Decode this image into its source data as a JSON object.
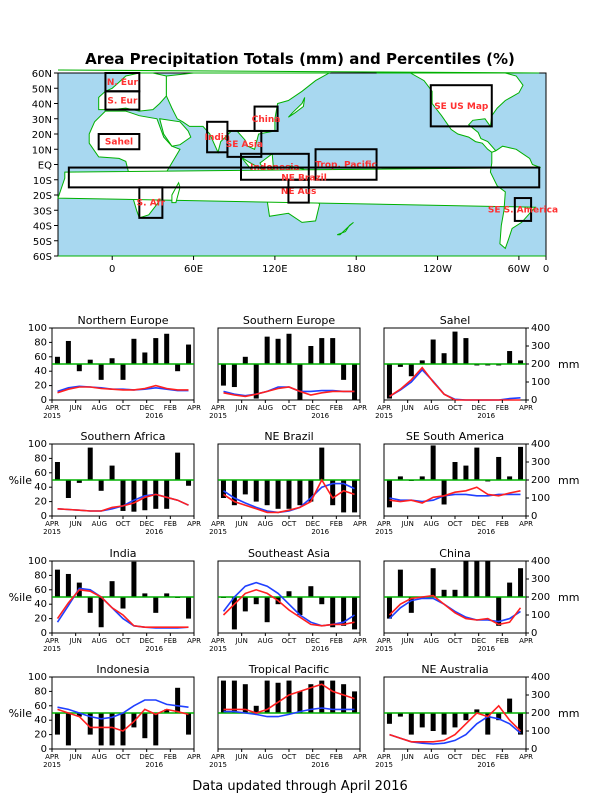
{
  "page": {
    "title": "Area Precipitation Totals (mm) and Percentiles (%)",
    "footer": "Data updated through April 2016",
    "colors": {
      "ocean": "#a8d8f0",
      "land": "#ffffff",
      "coast": "#00b000",
      "box": "#000000",
      "region_label": "#ff3030",
      "bar": "#000000",
      "pct_line": "#ff2020",
      "clim_line": "#2040ff",
      "ref50": "#00b000"
    }
  },
  "map": {
    "lat_ticks": [
      "60N",
      "50N",
      "40N",
      "30N",
      "20N",
      "10N",
      "EQ",
      "10S",
      "20S",
      "30S",
      "40S",
      "50S",
      "60S"
    ],
    "lon_ticks": [
      "0",
      "60E",
      "120E",
      "180",
      "120W",
      "60W",
      "0"
    ],
    "regions": [
      {
        "label": "N. Eur",
        "lon1": -5,
        "lat1": 48,
        "lon2": 20,
        "lat2": 60
      },
      {
        "label": "S. Eur",
        "lon1": -5,
        "lat1": 36,
        "lon2": 20,
        "lat2": 48
      },
      {
        "label": "Sahel",
        "lon1": -10,
        "lat1": 10,
        "lon2": 20,
        "lat2": 20
      },
      {
        "label": "India",
        "lon1": 70,
        "lat1": 8,
        "lon2": 85,
        "lat2": 28
      },
      {
        "label": "SE Asia",
        "lon1": 85,
        "lat1": 5,
        "lon2": 110,
        "lat2": 22
      },
      {
        "label": "China",
        "lon1": 105,
        "lat1": 22,
        "lon2": 122,
        "lat2": 38
      },
      {
        "label": "Indonesia",
        "lon1": 95,
        "lat1": -10,
        "lon2": 145,
        "lat2": 7
      },
      {
        "label": "Trop. Pacific",
        "lon1": 150,
        "lat1": -10,
        "lon2": 195,
        "lat2": 10
      },
      {
        "label": "SE US Map",
        "lon1": -125,
        "lat1": 25,
        "lon2": -80,
        "lat2": 52
      },
      {
        "label": "S. Afr",
        "lon1": 20,
        "lat1": -35,
        "lon2": 37,
        "lat2": -15
      },
      {
        "label": "NE Aus",
        "lon1": 130,
        "lat1": -25,
        "lon2": 145,
        "lat2": -10
      },
      {
        "label": "NE Brazil",
        "lon1": -45,
        "lat1": -15,
        "lon2": -32,
        "lat2": -2
      },
      {
        "label": "SE S. America",
        "lon1": -63,
        "lat1": -37,
        "lon2": -51,
        "lat2": -22
      }
    ]
  },
  "chart_data": [
    {
      "type": "bar",
      "title": "Northern Europe",
      "left_ticks": [
        "0",
        "20",
        "40",
        "60",
        "80",
        "100"
      ],
      "right_ticks": [],
      "right_unit": "",
      "left_unit": "",
      "bars": [
        60,
        82,
        40,
        56,
        28,
        58,
        28,
        85,
        66,
        86,
        92,
        40,
        77
      ],
      "pct": [
        10,
        15,
        18,
        18,
        16,
        15,
        14,
        14,
        16,
        20,
        16,
        14,
        14
      ],
      "clim": [
        12,
        17,
        19,
        18,
        17,
        15,
        15,
        14,
        15,
        17,
        15,
        13,
        13
      ]
    },
    {
      "type": "bar",
      "title": "Southern Europe",
      "left_ticks": [],
      "right_ticks": [],
      "right_unit": "",
      "left_unit": "",
      "bars": [
        20,
        18,
        60,
        2,
        88,
        85,
        92,
        0,
        75,
        86,
        86,
        28,
        0
      ],
      "pct": [
        10,
        7,
        5,
        8,
        12,
        16,
        18,
        12,
        7,
        10,
        12,
        12,
        12
      ],
      "clim": [
        12,
        8,
        6,
        8,
        12,
        18,
        18,
        12,
        12,
        13,
        13,
        12,
        12
      ]
    },
    {
      "type": "bar",
      "title": "Sahel",
      "left_ticks": [],
      "right_ticks": [
        "0",
        "100",
        "200",
        "300",
        "400"
      ],
      "right_unit": "mm",
      "left_unit": "",
      "bars": [
        2,
        46,
        33,
        55,
        84,
        65,
        95,
        86,
        48,
        48,
        48,
        68,
        55
      ],
      "pct": [
        5,
        15,
        28,
        45,
        25,
        8,
        0,
        0,
        0,
        0,
        0,
        0,
        0
      ],
      "clim": [
        5,
        14,
        25,
        42,
        26,
        8,
        1,
        0,
        0,
        0,
        0,
        2,
        3
      ]
    },
    {
      "type": "bar",
      "title": "Southern Africa",
      "left_ticks": [
        "0",
        "20",
        "40",
        "60",
        "80",
        "100"
      ],
      "right_ticks": [],
      "right_unit": "",
      "left_unit": "%ile",
      "bars": [
        75,
        25,
        46,
        95,
        35,
        70,
        7,
        6,
        8,
        10,
        10,
        88,
        42
      ],
      "pct": [
        10,
        9,
        8,
        7,
        7,
        12,
        14,
        18,
        26,
        30,
        26,
        22,
        15
      ],
      "clim": [
        10,
        9,
        8,
        7,
        7,
        10,
        14,
        22,
        28,
        30,
        26,
        22,
        15
      ]
    },
    {
      "type": "bar",
      "title": "NE Brazil",
      "left_ticks": [],
      "right_ticks": [],
      "right_unit": "",
      "left_unit": "",
      "bars": [
        25,
        15,
        30,
        20,
        15,
        10,
        10,
        15,
        20,
        95,
        15,
        5,
        5
      ],
      "pct": [
        30,
        20,
        15,
        10,
        5,
        5,
        8,
        12,
        20,
        50,
        25,
        35,
        30
      ],
      "clim": [
        35,
        25,
        18,
        12,
        7,
        5,
        7,
        12,
        25,
        40,
        45,
        45,
        38
      ]
    },
    {
      "type": "bar",
      "title": "SE South America",
      "left_ticks": [],
      "right_ticks": [
        "0",
        "100",
        "200",
        "300",
        "400"
      ],
      "right_unit": "mm",
      "left_unit": "",
      "bars": [
        12,
        55,
        50,
        55,
        98,
        16,
        75,
        70,
        95,
        48,
        82,
        55,
        96
      ],
      "pct": [
        22,
        20,
        22,
        18,
        26,
        28,
        33,
        35,
        40,
        30,
        28,
        32,
        35
      ],
      "clim": [
        25,
        22,
        22,
        20,
        22,
        28,
        30,
        30,
        28,
        28,
        30,
        30,
        30
      ]
    },
    {
      "type": "bar",
      "title": "India",
      "left_ticks": [
        "0",
        "20",
        "40",
        "60",
        "80",
        "100"
      ],
      "right_ticks": [],
      "right_unit": "",
      "left_unit": "%ile",
      "bars": [
        88,
        82,
        70,
        28,
        8,
        72,
        34,
        99,
        55,
        28,
        55,
        50,
        20
      ],
      "pct": [
        20,
        42,
        60,
        58,
        50,
        35,
        25,
        10,
        8,
        8,
        8,
        8,
        8
      ],
      "clim": [
        15,
        38,
        62,
        60,
        50,
        35,
        20,
        10,
        8,
        7,
        7,
        7,
        8
      ]
    },
    {
      "type": "bar",
      "title": "Southeast Asia",
      "left_ticks": [],
      "right_ticks": [],
      "right_unit": "",
      "left_unit": "",
      "bars": [
        50,
        5,
        30,
        40,
        15,
        40,
        58,
        25,
        65,
        40,
        8,
        10,
        5
      ],
      "pct": [
        25,
        40,
        55,
        60,
        55,
        45,
        32,
        22,
        12,
        10,
        12,
        12,
        15
      ],
      "clim": [
        30,
        50,
        65,
        70,
        65,
        55,
        40,
        25,
        15,
        10,
        12,
        15,
        25
      ]
    },
    {
      "type": "bar",
      "title": "China",
      "left_ticks": [],
      "right_ticks": [
        "0",
        "100",
        "200",
        "300",
        "400"
      ],
      "right_unit": "mm",
      "left_unit": "",
      "bars": [
        20,
        88,
        28,
        48,
        90,
        60,
        60,
        100,
        100,
        100,
        10,
        70,
        90
      ],
      "pct": [
        25,
        40,
        48,
        50,
        52,
        40,
        28,
        20,
        18,
        20,
        12,
        15,
        35
      ],
      "clim": [
        20,
        35,
        45,
        48,
        48,
        40,
        30,
        22,
        18,
        18,
        16,
        20,
        30
      ]
    },
    {
      "type": "bar",
      "title": "Indonesia",
      "left_ticks": [
        "0",
        "20",
        "40",
        "60",
        "80",
        "100"
      ],
      "right_ticks": [],
      "right_unit": "%ile",
      "left_unit": "%ile",
      "bars": [
        20,
        5,
        45,
        20,
        5,
        5,
        5,
        30,
        15,
        5,
        55,
        85,
        20
      ],
      "pct": [
        55,
        50,
        45,
        30,
        30,
        30,
        25,
        38,
        55,
        48,
        55,
        52,
        48
      ],
      "clim": [
        58,
        55,
        50,
        45,
        42,
        44,
        50,
        60,
        68,
        68,
        62,
        60,
        58
      ]
    },
    {
      "type": "bar",
      "title": "Tropical Pacific",
      "left_ticks": [],
      "right_ticks": [],
      "right_unit": "",
      "left_unit": "",
      "bars": [
        95,
        95,
        90,
        60,
        95,
        92,
        95,
        80,
        90,
        95,
        95,
        90,
        80
      ],
      "pct": [
        55,
        55,
        55,
        50,
        55,
        65,
        75,
        80,
        85,
        90,
        80,
        75,
        70
      ],
      "clim": [
        52,
        52,
        50,
        48,
        45,
        45,
        48,
        52,
        55,
        57,
        55,
        55,
        55
      ]
    },
    {
      "type": "bar",
      "title": "NE Australia",
      "left_ticks": [],
      "right_ticks": [
        "0",
        "100",
        "200",
        "300",
        "400"
      ],
      "right_unit": "mm",
      "left_unit": "",
      "bars": [
        35,
        45,
        20,
        30,
        25,
        20,
        30,
        40,
        55,
        20,
        40,
        70,
        20
      ],
      "pct": [
        20,
        15,
        10,
        10,
        10,
        12,
        20,
        35,
        50,
        45,
        60,
        40,
        25
      ],
      "clim": [
        20,
        15,
        10,
        8,
        7,
        8,
        12,
        20,
        35,
        45,
        42,
        35,
        22
      ]
    }
  ],
  "x_labels": [
    "APR",
    "JUN",
    "AUG",
    "OCT",
    "DEC",
    "FEB",
    "APR"
  ],
  "x_years": [
    "2015",
    "2016"
  ],
  "x_major": [
    "APR",
    "JUN",
    "AUG",
    "OCT",
    "DEC",
    "FEB",
    "APR"
  ],
  "left_unit_label": "%ile",
  "right_unit_label": "mm"
}
